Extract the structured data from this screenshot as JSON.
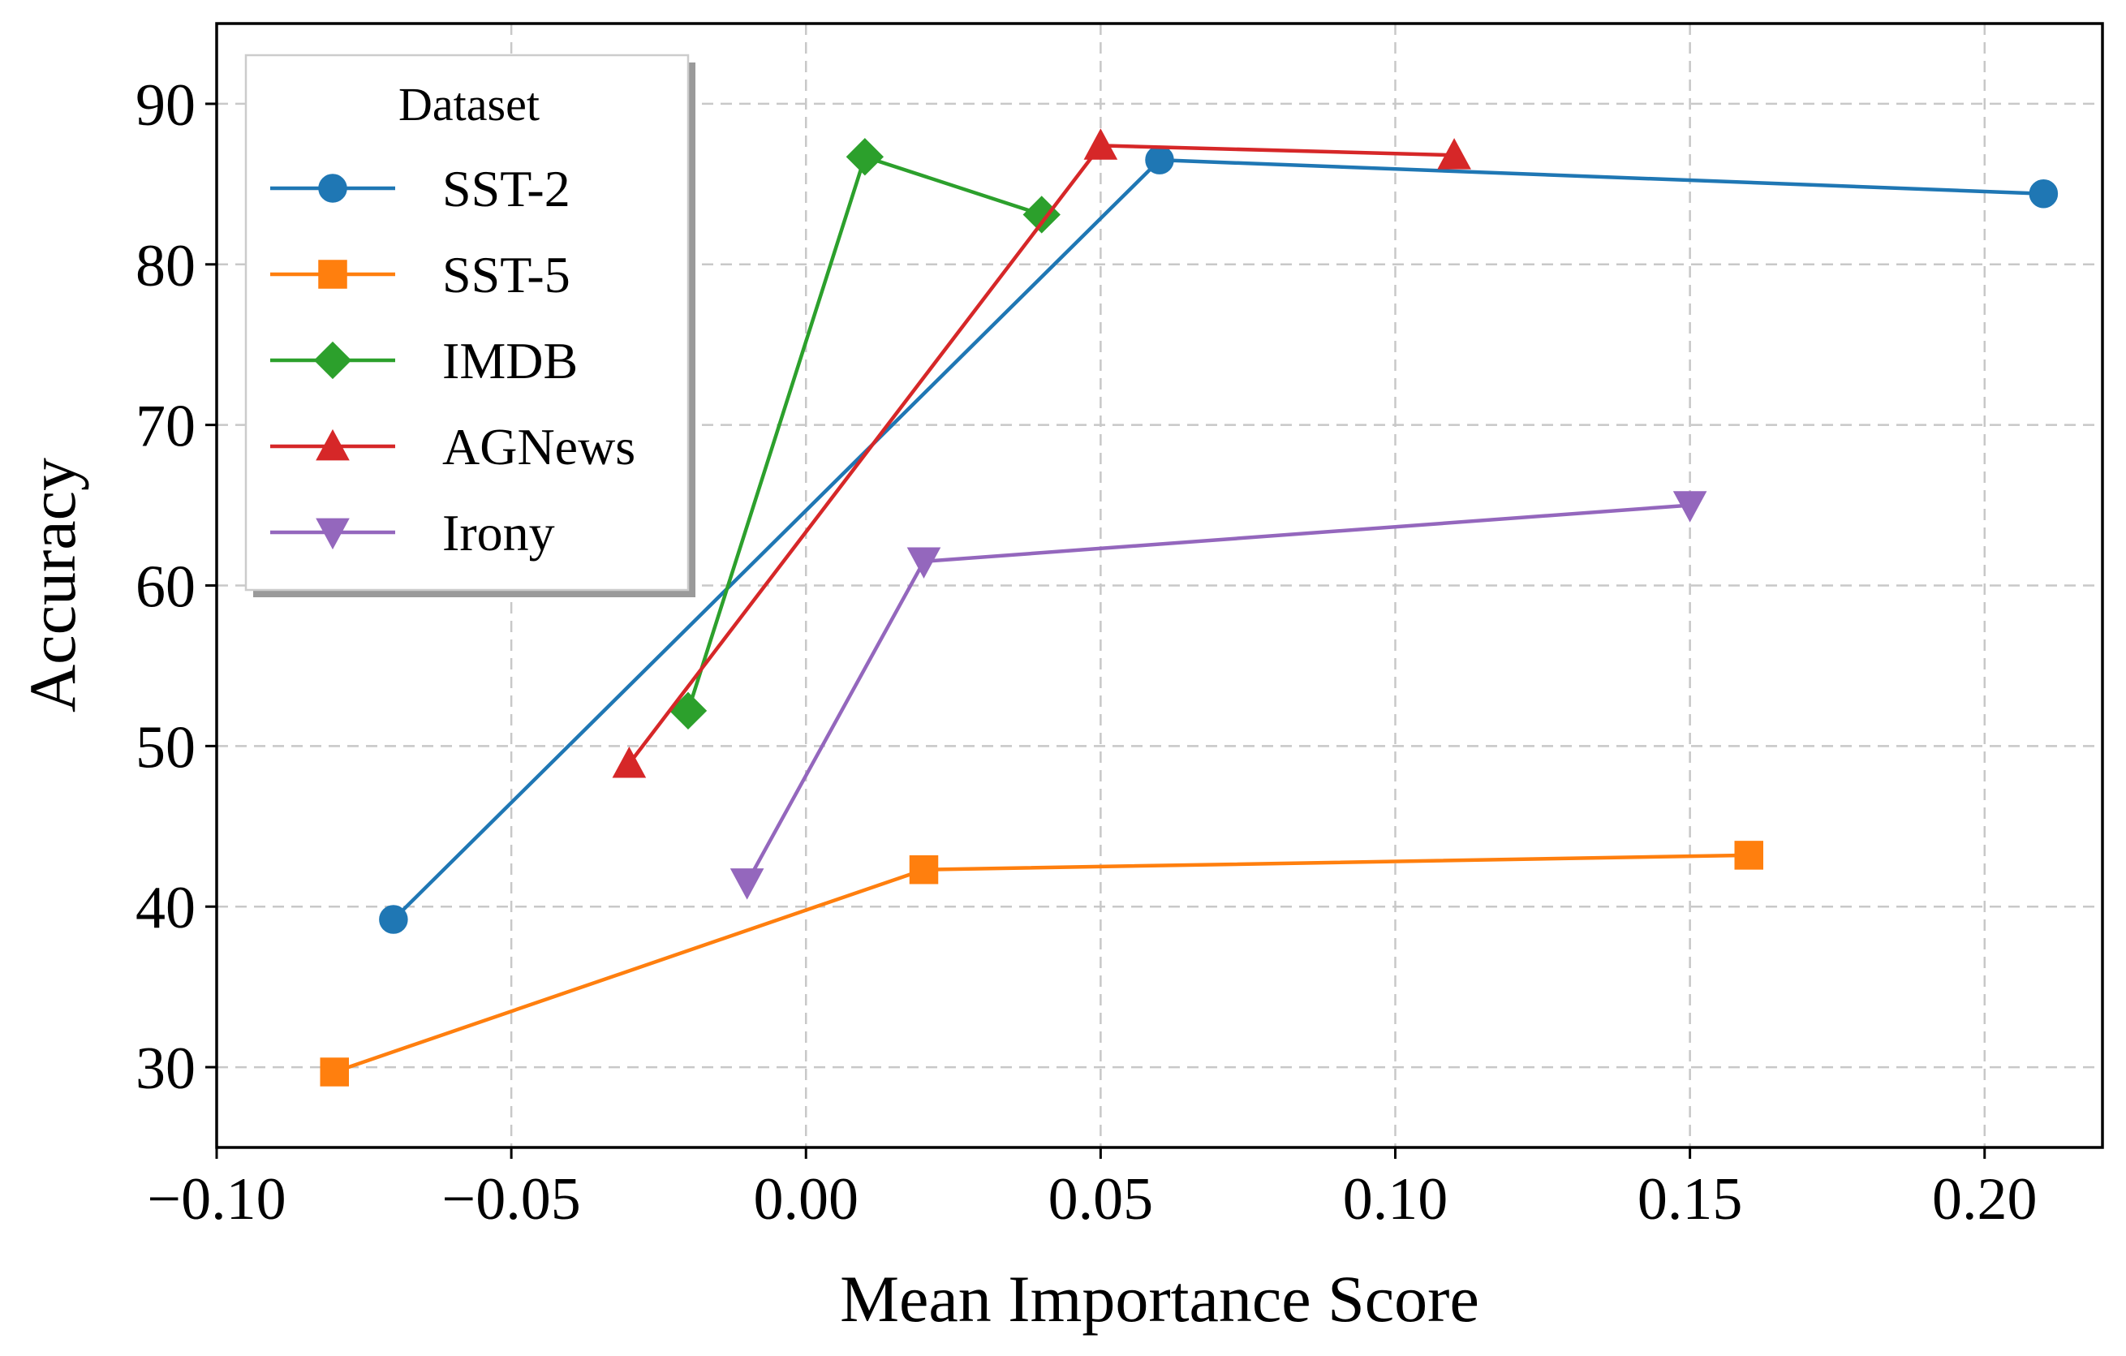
{
  "chart_data": {
    "type": "line",
    "title": "",
    "xlabel": "Mean Importance Score",
    "ylabel": "Accuracy",
    "xlim": [
      -0.1,
      0.22
    ],
    "ylim": [
      25,
      95
    ],
    "xticks": [
      -0.1,
      -0.05,
      0.0,
      0.05,
      0.1,
      0.15,
      0.2
    ],
    "xtick_labels": [
      "−0.10",
      "−0.05",
      "0.00",
      "0.05",
      "0.10",
      "0.15",
      "0.20"
    ],
    "yticks": [
      30,
      40,
      50,
      60,
      70,
      80,
      90
    ],
    "ytick_labels": [
      "30",
      "40",
      "50",
      "60",
      "70",
      "80",
      "90"
    ],
    "grid": true,
    "legend": {
      "title": "Dataset",
      "placement": "top-left"
    },
    "series": [
      {
        "name": "SST-2",
        "color": "#1f77b4",
        "marker": "circle",
        "x": [
          -0.07,
          0.06,
          0.21
        ],
        "y": [
          39.2,
          86.5,
          84.4
        ]
      },
      {
        "name": "SST-5",
        "color": "#ff7f0e",
        "marker": "square",
        "x": [
          -0.08,
          0.02,
          0.16
        ],
        "y": [
          29.7,
          42.3,
          43.2
        ]
      },
      {
        "name": "IMDB",
        "color": "#2ca02c",
        "marker": "diamond",
        "x": [
          -0.02,
          0.01,
          0.04
        ],
        "y": [
          52.2,
          86.7,
          83.1
        ]
      },
      {
        "name": "AGNews",
        "color": "#d62728",
        "marker": "triangle-up",
        "x": [
          -0.03,
          0.05,
          0.11
        ],
        "y": [
          48.9,
          87.4,
          86.8
        ]
      },
      {
        "name": "Irony",
        "color": "#9467bd",
        "marker": "triangle-down",
        "x": [
          -0.01,
          0.02,
          0.15
        ],
        "y": [
          41.5,
          61.5,
          65.0
        ]
      }
    ]
  }
}
